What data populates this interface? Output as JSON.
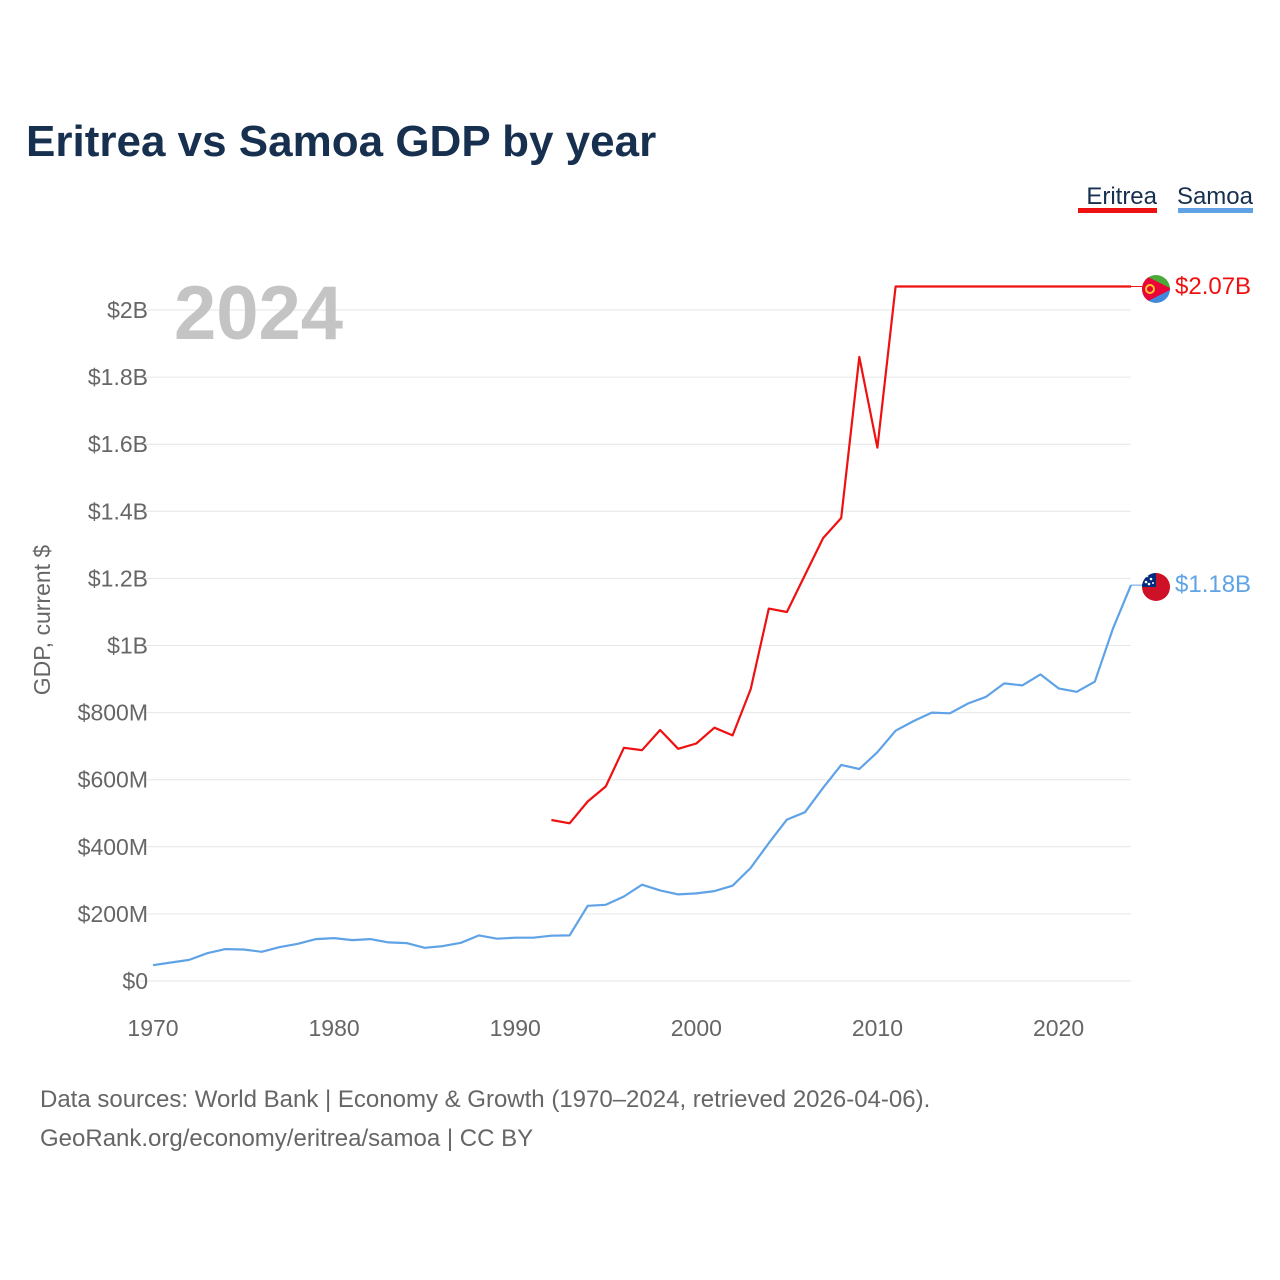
{
  "title": "Eritrea vs Samoa GDP by year",
  "year_label": "2024",
  "legend": [
    {
      "name": "Eritrea",
      "color": "#ee1111"
    },
    {
      "name": "Samoa",
      "color": "#5fa3e6"
    }
  ],
  "source_line1": "Data sources: World Bank | Economy & Growth (1970–2024, retrieved 2026-04-06).",
  "source_line2": "GeoRank.org/economy/eritrea/samoa | CC BY",
  "chart_data": {
    "type": "line",
    "title": "Eritrea vs Samoa GDP by year",
    "xlabel": "",
    "ylabel": "GDP, current $",
    "xlim": [
      1970,
      2024
    ],
    "ylim": [
      0,
      2100000000
    ],
    "x_ticks": [
      1970,
      1980,
      1990,
      2000,
      2010,
      2020
    ],
    "x_tick_labels": [
      "1970",
      "1980",
      "1990",
      "2000",
      "2010",
      "2020"
    ],
    "y_ticks": [
      0,
      200000000,
      400000000,
      600000000,
      800000000,
      1000000000,
      1200000000,
      1400000000,
      1600000000,
      1800000000,
      2000000000
    ],
    "y_tick_labels": [
      "$0",
      "$200M",
      "$400M",
      "$600M",
      "$800M",
      "$1B",
      "$1.2B",
      "$1.4B",
      "$1.6B",
      "$1.8B",
      "$2B"
    ],
    "grid": true,
    "legend_position": "top-right",
    "series": [
      {
        "name": "Eritrea",
        "color": "#ee1111",
        "end_label": "$2.07B",
        "x": [
          1992,
          1993,
          1994,
          1995,
          1996,
          1997,
          1998,
          1999,
          2000,
          2001,
          2002,
          2003,
          2004,
          2005,
          2006,
          2007,
          2008,
          2009,
          2010,
          2011,
          2012,
          2013,
          2014,
          2015,
          2016,
          2017,
          2018,
          2019,
          2020,
          2021,
          2022,
          2023,
          2024
        ],
        "values": [
          480000000,
          470000000,
          535000000,
          580000000,
          695000000,
          688000000,
          748000000,
          692000000,
          708000000,
          755000000,
          732000000,
          870000000,
          1110000000,
          1100000000,
          1210000000,
          1320000000,
          1380000000,
          1860000000,
          1590000000,
          2070000000,
          2070000000,
          2070000000,
          2070000000,
          2070000000,
          2070000000,
          2070000000,
          2070000000,
          2070000000,
          2070000000,
          2070000000,
          2070000000,
          2070000000,
          2070000000
        ]
      },
      {
        "name": "Samoa",
        "color": "#5fa3e6",
        "end_label": "$1.18B",
        "x": [
          1970,
          1971,
          1972,
          1973,
          1974,
          1975,
          1976,
          1977,
          1978,
          1979,
          1980,
          1981,
          1982,
          1983,
          1984,
          1985,
          1986,
          1987,
          1988,
          1989,
          1990,
          1991,
          1992,
          1993,
          1994,
          1995,
          1996,
          1997,
          1998,
          1999,
          2000,
          2001,
          2002,
          2003,
          2004,
          2005,
          2006,
          2007,
          2008,
          2009,
          2010,
          2011,
          2012,
          2013,
          2014,
          2015,
          2016,
          2017,
          2018,
          2019,
          2020,
          2021,
          2022,
          2023,
          2024
        ],
        "values": [
          47000000,
          55000000,
          63000000,
          83000000,
          95000000,
          94000000,
          87000000,
          101000000,
          111000000,
          125000000,
          128000000,
          122000000,
          125000000,
          115000000,
          113000000,
          99000000,
          104000000,
          114000000,
          136000000,
          126000000,
          129000000,
          129000000,
          135000000,
          136000000,
          224000000,
          227000000,
          252000000,
          287000000,
          270000000,
          258000000,
          261000000,
          268000000,
          284000000,
          337000000,
          411000000,
          481000000,
          503000000,
          576000000,
          644000000,
          632000000,
          682000000,
          746000000,
          775000000,
          800000000,
          798000000,
          827000000,
          847000000,
          887000000,
          881000000,
          914000000,
          872000000,
          862000000,
          892000000,
          1050000000,
          1180000000
        ]
      }
    ]
  }
}
